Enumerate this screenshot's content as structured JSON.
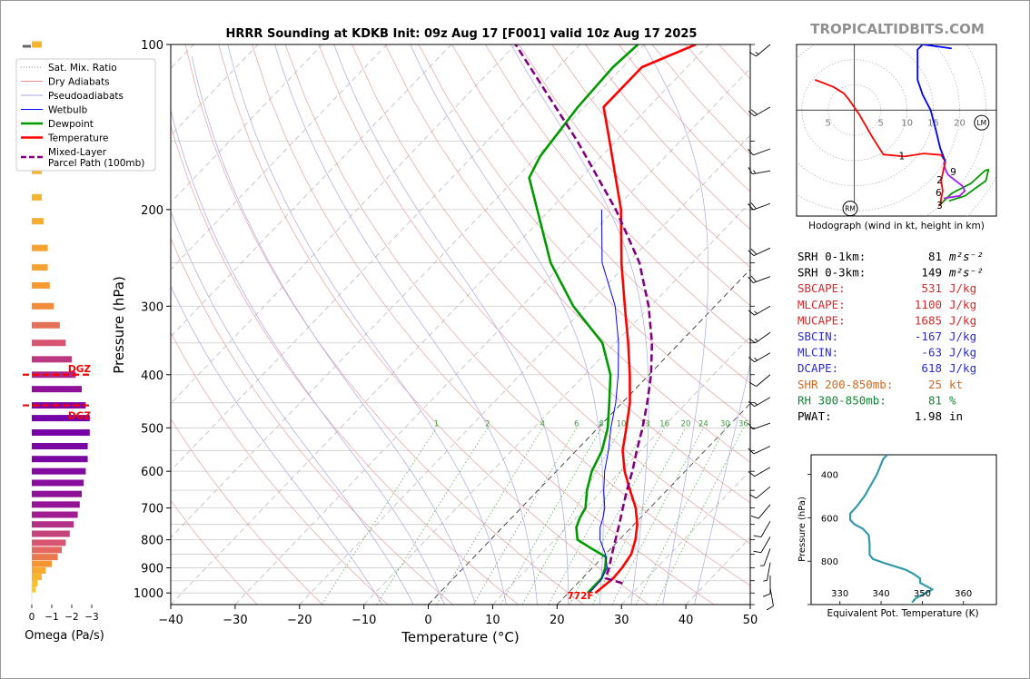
{
  "chart_data": {
    "type": "line",
    "title": "HRRR Sounding at KDKB Init: 09z Aug 17 [F001] valid 10z Aug 17 2025",
    "site_label": "TROPICALTIDBITS.COM",
    "xlabel": "Temperature (°C)",
    "ylabel": "Pressure (hPa)",
    "xlim": [
      -40,
      50
    ],
    "ylim": [
      1050,
      100
    ],
    "y_scale": "log",
    "xticks": [
      -40,
      -30,
      -20,
      -10,
      0,
      10,
      20,
      30,
      40,
      50
    ],
    "xtick_labels": [
      "−40",
      "−30",
      "−20",
      "−10",
      "0",
      "10",
      "20",
      "30",
      "40",
      "50"
    ],
    "yticks": [
      100,
      200,
      300,
      400,
      500,
      600,
      700,
      800,
      900,
      1000
    ],
    "ytick_labels": [
      "100",
      "200",
      "300",
      "400",
      "500",
      "600",
      "700",
      "800",
      "900",
      "1000"
    ],
    "grid": true,
    "legend_placement": "left",
    "legend": [
      {
        "label": "Sat. Mix. Ratio",
        "style": "dotted",
        "color": "#888888"
      },
      {
        "label": "Dry Adiabats",
        "style": "solid",
        "color": "#e89090"
      },
      {
        "label": "Pseudoadiabats",
        "style": "solid",
        "color": "#a0a0e0"
      },
      {
        "label": "Wetbulb",
        "style": "solid",
        "color": "#0000ff"
      },
      {
        "label": "Dewpoint",
        "style": "solid",
        "color": "#009900"
      },
      {
        "label": "Temperature",
        "style": "solid",
        "color": "#ff0000"
      },
      {
        "label": "Mixed-Layer\nParcel Path (100mb)",
        "style": "dashed",
        "color": "#800080"
      }
    ],
    "series": [
      {
        "name": "Temperature",
        "color": "#ff0000",
        "points": [
          [
            1000,
            24.2
          ],
          [
            970,
            24.5
          ],
          [
            940,
            24.8
          ],
          [
            900,
            24.6
          ],
          [
            850,
            24.0
          ],
          [
            800,
            22.5
          ],
          [
            750,
            20.5
          ],
          [
            700,
            17.8
          ],
          [
            650,
            14.3
          ],
          [
            600,
            10.6
          ],
          [
            550,
            7.2
          ],
          [
            500,
            4.4
          ],
          [
            450,
            1.2
          ],
          [
            400,
            -3.0
          ],
          [
            350,
            -8.0
          ],
          [
            300,
            -14.0
          ],
          [
            250,
            -21.0
          ],
          [
            200,
            -29.0
          ],
          [
            150,
            -41.0
          ],
          [
            130,
            -47.0
          ],
          [
            110,
            -47.0
          ],
          [
            100,
            -42.0
          ]
        ]
      },
      {
        "name": "Dewpoint",
        "color": "#009900",
        "points": [
          [
            1000,
            23.0
          ],
          [
            970,
            23.0
          ],
          [
            940,
            23.0
          ],
          [
            900,
            22.0
          ],
          [
            860,
            20.5
          ],
          [
            830,
            17.0
          ],
          [
            800,
            13.5
          ],
          [
            760,
            11.5
          ],
          [
            730,
            10.6
          ],
          [
            700,
            10.0
          ],
          [
            650,
            7.6
          ],
          [
            600,
            5.5
          ],
          [
            550,
            4.0
          ],
          [
            500,
            1.5
          ],
          [
            450,
            -2.0
          ],
          [
            400,
            -6.0
          ],
          [
            350,
            -12.0
          ],
          [
            300,
            -22.0
          ],
          [
            250,
            -32.0
          ],
          [
            200,
            -42.0
          ],
          [
            175,
            -48.0
          ],
          [
            160,
            -49.5
          ],
          [
            130,
            -51.0
          ],
          [
            110,
            -51.5
          ],
          [
            100,
            -51.0
          ]
        ]
      },
      {
        "name": "Wetbulb",
        "color": "#0000ff",
        "points": [
          [
            1000,
            23.3
          ],
          [
            950,
            23.2
          ],
          [
            900,
            22.3
          ],
          [
            850,
            20.0
          ],
          [
            800,
            17.0
          ],
          [
            760,
            15.2
          ],
          [
            730,
            14.2
          ],
          [
            700,
            13.0
          ],
          [
            650,
            10.2
          ],
          [
            600,
            7.5
          ],
          [
            550,
            5.0
          ],
          [
            500,
            2.0
          ],
          [
            450,
            -1.0
          ],
          [
            400,
            -4.8
          ],
          [
            350,
            -9.5
          ],
          [
            300,
            -15.5
          ],
          [
            250,
            -24.0
          ],
          [
            200,
            -32.0
          ]
        ]
      },
      {
        "name": "Mixed-Layer Parcel Path (100mb)",
        "color": "#800080",
        "points": [
          [
            960,
            27.0
          ],
          [
            940,
            23.6
          ],
          [
            900,
            22.6
          ],
          [
            850,
            21.0
          ],
          [
            800,
            19.4
          ],
          [
            750,
            17.7
          ],
          [
            700,
            15.8
          ],
          [
            650,
            13.8
          ],
          [
            600,
            11.8
          ],
          [
            550,
            9.4
          ],
          [
            500,
            6.9
          ],
          [
            450,
            3.9
          ],
          [
            400,
            0.3
          ],
          [
            350,
            -4.3
          ],
          [
            300,
            -10.3
          ],
          [
            250,
            -18.2
          ],
          [
            200,
            -29.8
          ],
          [
            150,
            -46.0
          ],
          [
            100,
            -70.0
          ]
        ]
      }
    ],
    "dry_adiabat_theta_c": [
      -30,
      -20,
      -10,
      0,
      10,
      20,
      30,
      40,
      50,
      60,
      70,
      80,
      90,
      100,
      110,
      120,
      130,
      140,
      150,
      160,
      170,
      180
    ],
    "pseudoadiabat_theta_c": [
      -10,
      -5,
      0,
      5,
      10,
      15,
      20,
      25,
      30,
      35,
      40
    ],
    "mixing_ratio_lines": [
      1,
      2,
      4,
      6,
      8,
      10,
      13,
      16,
      20,
      24,
      30,
      36
    ],
    "mixing_ratio_labels": [
      "1",
      "2",
      "4",
      "6",
      "8",
      "10",
      "13",
      "16",
      "20",
      "24",
      "30",
      "36"
    ],
    "surface_temp_label": "772F",
    "wind_barbs": [
      {
        "p": 100,
        "spd": 15,
        "dir": 230
      },
      {
        "p": 130,
        "spd": 20,
        "dir": 240
      },
      {
        "p": 155,
        "spd": 10,
        "dir": 250
      },
      {
        "p": 170,
        "spd": 15,
        "dir": 260
      },
      {
        "p": 195,
        "spd": 20,
        "dir": 250
      },
      {
        "p": 235,
        "spd": 20,
        "dir": 245
      },
      {
        "p": 265,
        "spd": 20,
        "dir": 250
      },
      {
        "p": 300,
        "spd": 15,
        "dir": 240
      },
      {
        "p": 335,
        "spd": 15,
        "dir": 235
      },
      {
        "p": 365,
        "spd": 15,
        "dir": 240
      },
      {
        "p": 400,
        "spd": 10,
        "dir": 230
      },
      {
        "p": 440,
        "spd": 15,
        "dir": 240
      },
      {
        "p": 490,
        "spd": 10,
        "dir": 250
      },
      {
        "p": 540,
        "spd": 10,
        "dir": 245
      },
      {
        "p": 590,
        "spd": 10,
        "dir": 240
      },
      {
        "p": 640,
        "spd": 10,
        "dir": 230
      },
      {
        "p": 690,
        "spd": 10,
        "dir": 220
      },
      {
        "p": 740,
        "spd": 10,
        "dir": 210
      },
      {
        "p": 790,
        "spd": 10,
        "dir": 210
      },
      {
        "p": 830,
        "spd": 5,
        "dir": 200
      },
      {
        "p": 880,
        "spd": 5,
        "dir": 190
      },
      {
        "p": 930,
        "spd": 10,
        "dir": 180
      },
      {
        "p": 980,
        "spd": 10,
        "dir": 170
      }
    ],
    "omega_panel": {
      "xlabel": "Omega (Pa/s)",
      "xticks": [
        0,
        -1,
        -2,
        -3
      ],
      "xtick_labels": [
        "0",
        "−1",
        "−2",
        "−3"
      ],
      "dgz_label": "DGZ",
      "dgz_bounds": [
        400,
        455
      ],
      "bars": [
        {
          "p": 100,
          "v": -0.5
        },
        {
          "p": 147,
          "v": -0.4
        },
        {
          "p": 170,
          "v": -0.5
        },
        {
          "p": 190,
          "v": -0.5
        },
        {
          "p": 210,
          "v": -0.6
        },
        {
          "p": 235,
          "v": -0.8
        },
        {
          "p": 255,
          "v": -0.8
        },
        {
          "p": 275,
          "v": -0.9
        },
        {
          "p": 300,
          "v": -1.1
        },
        {
          "p": 325,
          "v": -1.4
        },
        {
          "p": 350,
          "v": -1.7
        },
        {
          "p": 375,
          "v": -2.0
        },
        {
          "p": 400,
          "v": -2.2
        },
        {
          "p": 425,
          "v": -2.5
        },
        {
          "p": 455,
          "v": -2.7
        },
        {
          "p": 480,
          "v": -2.9
        },
        {
          "p": 510,
          "v": -2.9
        },
        {
          "p": 540,
          "v": -2.8
        },
        {
          "p": 570,
          "v": -2.8
        },
        {
          "p": 600,
          "v": -2.7
        },
        {
          "p": 630,
          "v": -2.6
        },
        {
          "p": 660,
          "v": -2.5
        },
        {
          "p": 690,
          "v": -2.4
        },
        {
          "p": 720,
          "v": -2.3
        },
        {
          "p": 750,
          "v": -2.1
        },
        {
          "p": 780,
          "v": -1.9
        },
        {
          "p": 810,
          "v": -1.7
        },
        {
          "p": 835,
          "v": -1.5
        },
        {
          "p": 860,
          "v": -1.3
        },
        {
          "p": 885,
          "v": -1.0
        },
        {
          "p": 910,
          "v": -0.7
        },
        {
          "p": 935,
          "v": -0.5
        },
        {
          "p": 960,
          "v": -0.3
        },
        {
          "p": 985,
          "v": -0.2
        }
      ]
    },
    "hodograph": {
      "caption": "Hodograph (wind in kt, height in km)",
      "ring_labels": [
        "5",
        "5",
        "10",
        "15",
        "20"
      ],
      "ring_label_values": [
        -5,
        5,
        10,
        15,
        20
      ],
      "rings": [
        5,
        10,
        15,
        20,
        25,
        30
      ],
      "xlim": [
        -11,
        27
      ],
      "ylim": [
        -21,
        13
      ],
      "rm_label": "RM",
      "lm_label": "LM",
      "rm": [
        -0.8,
        -19.5
      ],
      "lm": [
        24.2,
        -2.5
      ],
      "segments": [
        {
          "color": "#009900",
          "points": [
            [
              16.0,
              -19.0
            ],
            [
              18.5,
              -16.5
            ],
            [
              22.2,
              -14.5
            ],
            [
              24.8,
              -12.0
            ],
            [
              25.5,
              -11.8
            ],
            [
              25.0,
              -14.0
            ],
            [
              21.0,
              -17.0
            ],
            [
              18.0,
              -18.0
            ]
          ]
        },
        {
          "color": "#a020f0",
          "points": [
            [
              17.0,
              -17.5
            ],
            [
              20.0,
              -17.0
            ],
            [
              21.0,
              -16.0
            ],
            [
              20.5,
              -15.0
            ],
            [
              19.0,
              -13.8
            ],
            [
              17.8,
              -12.8
            ],
            [
              17.2,
              -11.5
            ],
            [
              17.0,
              -10.3
            ]
          ]
        },
        {
          "color": "#ff0000",
          "points": [
            [
              16.3,
              -19.0
            ],
            [
              16.5,
              -17.5
            ],
            [
              16.8,
              -16.0
            ],
            [
              16.5,
              -14.0
            ],
            [
              17.0,
              -11.5
            ],
            [
              17.3,
              -10.2
            ],
            [
              16.5,
              -8.9
            ],
            [
              13.2,
              -8.6
            ],
            [
              9.5,
              -9.2
            ],
            [
              5.5,
              -8.8
            ],
            [
              3.2,
              -5.0
            ],
            [
              1.0,
              -1.0
            ],
            [
              -1.0,
              2.0
            ],
            [
              -2.0,
              3.3
            ],
            [
              -4.0,
              4.6
            ],
            [
              -7.5,
              6.0
            ]
          ]
        },
        {
          "color": "#0000ff",
          "points": [
            [
              17.3,
              -10.2
            ],
            [
              16.3,
              -7.5
            ],
            [
              15.5,
              -4.0
            ],
            [
              14.5,
              0.0
            ],
            [
              13.0,
              3.0
            ],
            [
              12.0,
              6.0
            ],
            [
              12.0,
              9.0
            ],
            [
              12.0,
              12.0
            ],
            [
              13.0,
              13.0
            ],
            [
              18.5,
              12.2
            ]
          ]
        }
      ],
      "height_labels": [
        {
          "text": "1",
          "u": 9.0,
          "v": -9.0
        },
        {
          "text": "9",
          "u": 18.8,
          "v": -12.2
        },
        {
          "text": "2",
          "u": 16.2,
          "v": -13.8
        },
        {
          "text": "6",
          "u": 16.0,
          "v": -16.3
        },
        {
          "text": "3",
          "u": 16.2,
          "v": -18.8
        }
      ]
    },
    "theta_e_panel": {
      "ylabel": "Pressure (hPa)",
      "xlabel": "Equivalent Pot. Temperature (K)",
      "xlim": [
        323,
        368
      ],
      "ylim": [
        1000,
        310
      ],
      "xticks": [
        330,
        340,
        350,
        360
      ],
      "xtick_labels": [
        "330",
        "340",
        "350",
        "360"
      ],
      "yticks": [
        400,
        600,
        800,
        1000
      ],
      "ytick_labels": [
        "400",
        "600",
        "800",
        ""
      ],
      "color": "#3399aa",
      "points": [
        [
          310,
          341.5
        ],
        [
          330,
          340.5
        ],
        [
          400,
          339.0
        ],
        [
          450,
          337.5
        ],
        [
          500,
          336.0
        ],
        [
          550,
          334.0
        ],
        [
          580,
          332.5
        ],
        [
          610,
          332.5
        ],
        [
          630,
          333.5
        ],
        [
          650,
          335.5
        ],
        [
          680,
          337.0
        ],
        [
          720,
          337.2
        ],
        [
          770,
          337.2
        ],
        [
          790,
          338.0
        ],
        [
          810,
          341.0
        ],
        [
          840,
          346.0
        ],
        [
          860,
          348.0
        ],
        [
          880,
          349.5
        ],
        [
          900,
          349.5
        ],
        [
          930,
          352.5
        ],
        [
          950,
          350.5
        ],
        [
          970,
          348.5
        ],
        [
          990,
          347.5
        ]
      ]
    },
    "indices": [
      {
        "label": "SRH 0-1km:",
        "value": "81",
        "unit": "m²s⁻²",
        "color": "#000000"
      },
      {
        "label": "SRH 0-3km:",
        "value": "149",
        "unit": "m²s⁻²",
        "color": "#000000"
      },
      {
        "label": "SBCAPE:",
        "value": "531",
        "unit": "J/kg",
        "color": "#d62828"
      },
      {
        "label": "MLCAPE:",
        "value": "1100",
        "unit": "J/kg",
        "color": "#d62828"
      },
      {
        "label": "MUCAPE:",
        "value": "1685",
        "unit": "J/kg",
        "color": "#d62828"
      },
      {
        "label": "SBCIN:",
        "value": "-167",
        "unit": "J/kg",
        "color": "#2a2ad6"
      },
      {
        "label": "MLCIN:",
        "value": "-63",
        "unit": "J/kg",
        "color": "#2a2ad6"
      },
      {
        "label": "DCAPE:",
        "value": "618",
        "unit": "J/kg",
        "color": "#2a2ad6"
      },
      {
        "label": "SHR 200-850mb:",
        "value": "25",
        "unit": "kt",
        "color": "#d2691e"
      },
      {
        "label": "RH 300-850mb:",
        "value": "81",
        "unit": "%",
        "color": "#118833"
      },
      {
        "label": "PWAT:",
        "value": "1.98",
        "unit": "in",
        "color": "#000000"
      }
    ]
  }
}
